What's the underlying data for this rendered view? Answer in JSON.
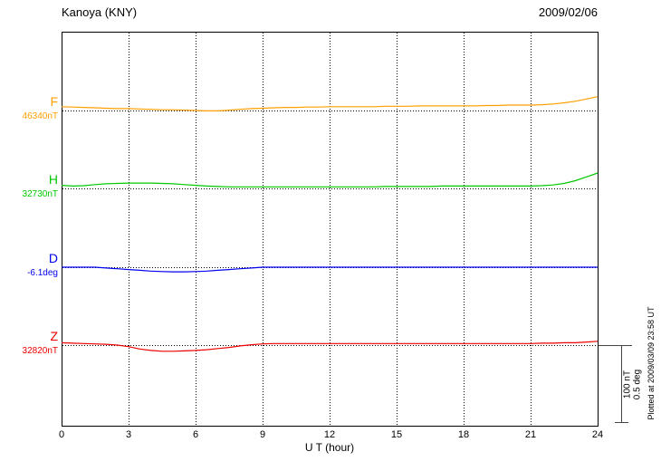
{
  "header": {
    "station": "Kanoya (KNY)",
    "date": "2009/02/06"
  },
  "axis": {
    "xlabel": "U T (hour)",
    "ticks": [
      0,
      3,
      6,
      9,
      12,
      15,
      18,
      21,
      24
    ],
    "xmin": 0,
    "xmax": 24
  },
  "scale_bar": {
    "nt_label": "100 nT",
    "deg_label": "0.5 deg"
  },
  "plotted_at": "Plotted at 2009/03/09 23:58 UT",
  "chart_data": {
    "type": "line",
    "title": "Kanoya (KNY)",
    "date": "2009/02/06",
    "x_unit": "UT hour",
    "x_start": 0,
    "x_end": 24,
    "x_step": 0.5,
    "grid": "dotted vertical lines every 3 h; dotted horizontal baseline per component",
    "scale_reference": {
      "nT": 100,
      "deg": 0.5
    },
    "series": [
      {
        "name": "F",
        "unit": "nT",
        "baseline_value": 46340,
        "baseline_label": "46340nT",
        "color": "#FFA000",
        "offsets": [
          5,
          4.5,
          4,
          3.5,
          3,
          2.5,
          2.5,
          2,
          1.5,
          1,
          1,
          0.5,
          0,
          -0.5,
          -0.5,
          0.5,
          1.5,
          2.5,
          3,
          3.5,
          4,
          4,
          4.5,
          4.5,
          5,
          5,
          5,
          5,
          5,
          5.5,
          5.5,
          5.5,
          6,
          6,
          6,
          6,
          6,
          6,
          6.5,
          6.5,
          7,
          7,
          7,
          7.5,
          8.5,
          10,
          12,
          15,
          18
        ]
      },
      {
        "name": "H",
        "unit": "nT",
        "baseline_value": 32730,
        "baseline_label": "32730nT",
        "color": "#00C800",
        "offsets": [
          4,
          3,
          3.5,
          5,
          6,
          6.5,
          7,
          7,
          7,
          6.5,
          6,
          5,
          4,
          3,
          2.5,
          2,
          2,
          2,
          2,
          2,
          2,
          2,
          2,
          2,
          2,
          2,
          2,
          2,
          2,
          2.5,
          2.5,
          2.5,
          2.5,
          2.5,
          3,
          3,
          3,
          3,
          3,
          3,
          3,
          3,
          3,
          3.5,
          4.5,
          6.5,
          10,
          15,
          20
        ]
      },
      {
        "name": "D",
        "unit": "deg",
        "baseline_value": -6.1,
        "baseline_label": "-6.1deg",
        "color": "#0000EE",
        "offsets": [
          0,
          0,
          0,
          0,
          -0.005,
          -0.01,
          -0.015,
          -0.02,
          -0.025,
          -0.028,
          -0.03,
          -0.03,
          -0.028,
          -0.025,
          -0.02,
          -0.015,
          -0.01,
          -0.005,
          0,
          0,
          0,
          0,
          0,
          0,
          0,
          0,
          0,
          0,
          0,
          0,
          0,
          0,
          0,
          0,
          0,
          0,
          0,
          0,
          0,
          0,
          0,
          0,
          0,
          0,
          0,
          0,
          0,
          0,
          0
        ]
      },
      {
        "name": "Z",
        "unit": "nT",
        "baseline_value": 32820,
        "baseline_label": "32820nT",
        "color": "#EE0000",
        "offsets": [
          3,
          2.5,
          2,
          1.5,
          1,
          0,
          -2,
          -5,
          -7,
          -8,
          -8,
          -7.5,
          -7,
          -6,
          -4.5,
          -3,
          -1,
          0.5,
          1.5,
          2,
          2,
          2,
          2,
          2,
          2,
          2,
          2,
          2,
          2,
          2,
          2,
          2,
          2,
          2,
          2,
          2,
          2,
          2,
          2,
          2,
          2,
          2,
          2,
          2.5,
          2.5,
          3,
          3,
          4,
          5
        ]
      }
    ]
  }
}
